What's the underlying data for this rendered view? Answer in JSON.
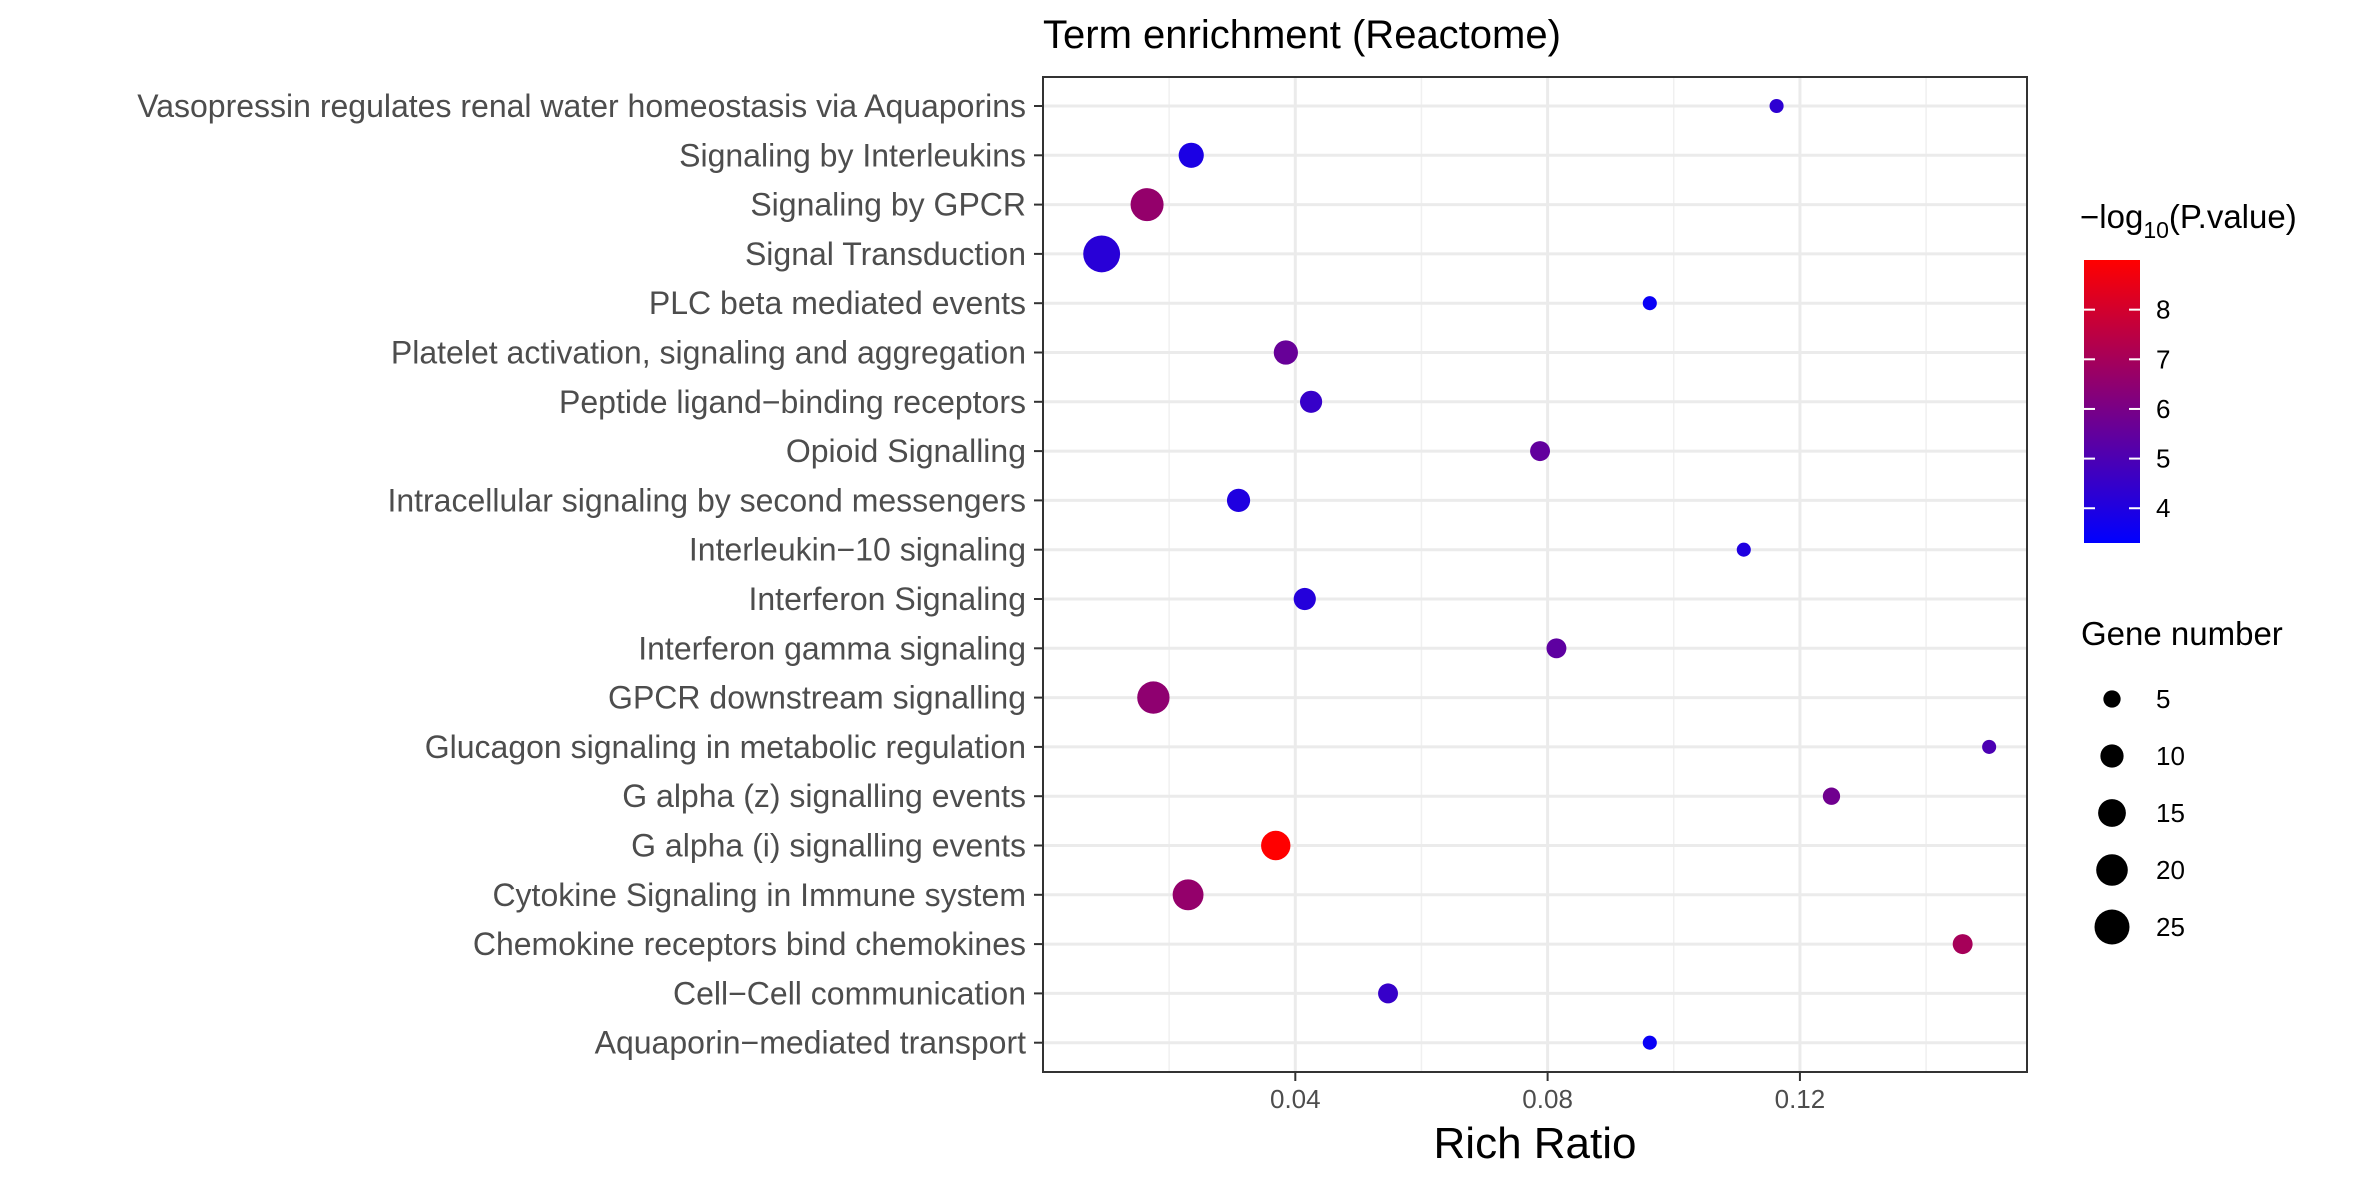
{
  "chart_data": {
    "type": "scatter",
    "title": "Term enrichment (Reactome)",
    "xlabel": "Rich Ratio",
    "ylabel": "",
    "xlim": [
      0.0,
      0.156
    ],
    "x_ticks": [
      0.04,
      0.08,
      0.12
    ],
    "x_tick_labels": [
      "0.04",
      "0.08",
      "0.12"
    ],
    "grid": true,
    "categories": [
      "Vasopressin regulates renal water homeostasis via Aquaporins",
      "Signaling by Interleukins",
      "Signaling by GPCR",
      "Signal Transduction",
      "PLC beta mediated events",
      "Platelet activation, signaling and aggregation",
      "Peptide ligand−binding receptors",
      "Opioid Signalling",
      "Intracellular signaling by second messengers",
      "Interleukin−10 signaling",
      "Interferon Signaling",
      "Interferon gamma signaling",
      "GPCR downstream signalling",
      "Glucagon signaling in metabolic regulation",
      "G alpha (z) signalling events",
      "G alpha (i) signalling events",
      "Cytokine Signaling in Immune system",
      "Chemokine receptors bind chemokines",
      "Cell−Cell communication",
      "Aquaporin−mediated transport"
    ],
    "points": [
      {
        "term": "Vasopressin regulates renal water homeostasis via Aquaporins",
        "rich_ratio": 0.1163,
        "gene_number": 3,
        "neg_log10_p": 4.3
      },
      {
        "term": "Signaling by Interleukins",
        "rich_ratio": 0.0235,
        "gene_number": 12,
        "neg_log10_p": 3.9
      },
      {
        "term": "Signaling by GPCR",
        "rich_ratio": 0.0165,
        "gene_number": 22,
        "neg_log10_p": 6.6
      },
      {
        "term": "Signal Transduction",
        "rich_ratio": 0.0093,
        "gene_number": 28,
        "neg_log10_p": 4.2
      },
      {
        "term": "PLC beta mediated events",
        "rich_ratio": 0.0962,
        "gene_number": 3,
        "neg_log10_p": 3.5
      },
      {
        "term": "Platelet activation, signaling and aggregation",
        "rich_ratio": 0.0385,
        "gene_number": 11,
        "neg_log10_p": 5.6
      },
      {
        "term": "Peptide ligand−binding receptors",
        "rich_ratio": 0.0425,
        "gene_number": 9,
        "neg_log10_p": 4.5
      },
      {
        "term": "Opioid Signalling",
        "rich_ratio": 0.0788,
        "gene_number": 7,
        "neg_log10_p": 5.5
      },
      {
        "term": "Intracellular signaling by second messengers",
        "rich_ratio": 0.031,
        "gene_number": 10,
        "neg_log10_p": 4.0
      },
      {
        "term": "Interleukin−10 signaling",
        "rich_ratio": 0.1111,
        "gene_number": 3,
        "neg_log10_p": 4.0
      },
      {
        "term": "Interferon Signaling",
        "rich_ratio": 0.0415,
        "gene_number": 9,
        "neg_log10_p": 4.1
      },
      {
        "term": "Interferon gamma signaling",
        "rich_ratio": 0.0814,
        "gene_number": 7,
        "neg_log10_p": 5.4
      },
      {
        "term": "GPCR downstream signalling",
        "rich_ratio": 0.0175,
        "gene_number": 21,
        "neg_log10_p": 6.5
      },
      {
        "term": "Glucagon signaling in metabolic regulation",
        "rich_ratio": 0.15,
        "gene_number": 3,
        "neg_log10_p": 5.0
      },
      {
        "term": "G alpha (z) signalling events",
        "rich_ratio": 0.125,
        "gene_number": 5,
        "neg_log10_p": 5.8
      },
      {
        "term": "G alpha (i) signalling events",
        "rich_ratio": 0.0369,
        "gene_number": 17,
        "neg_log10_p": 9.0
      },
      {
        "term": "Cytokine Signaling in Immune system",
        "rich_ratio": 0.023,
        "gene_number": 19,
        "neg_log10_p": 6.6
      },
      {
        "term": "Chemokine receptors bind chemokines",
        "rich_ratio": 0.1458,
        "gene_number": 7,
        "neg_log10_p": 7.0
      },
      {
        "term": "Cell−Cell communication",
        "rich_ratio": 0.0547,
        "gene_number": 7,
        "neg_log10_p": 4.5
      },
      {
        "term": "Aquaporin−mediated transport",
        "rich_ratio": 0.0962,
        "gene_number": 3,
        "neg_log10_p": 3.5
      }
    ],
    "color_legend": {
      "title_prefix": "−log",
      "title_subscript": "10",
      "title_suffix": "(P.value)",
      "min": 3.3,
      "max": 9.0,
      "ticks": [
        4,
        5,
        6,
        7,
        8
      ],
      "tick_labels": [
        "4",
        "5",
        "6",
        "7",
        "8"
      ],
      "low_color": "#0000ff",
      "high_color": "#ff0000"
    },
    "size_legend": {
      "title": "Gene number",
      "values": [
        5,
        10,
        15,
        20,
        25
      ],
      "labels": [
        "5",
        "10",
        "15",
        "20",
        "25"
      ]
    },
    "legend_position": "right"
  }
}
